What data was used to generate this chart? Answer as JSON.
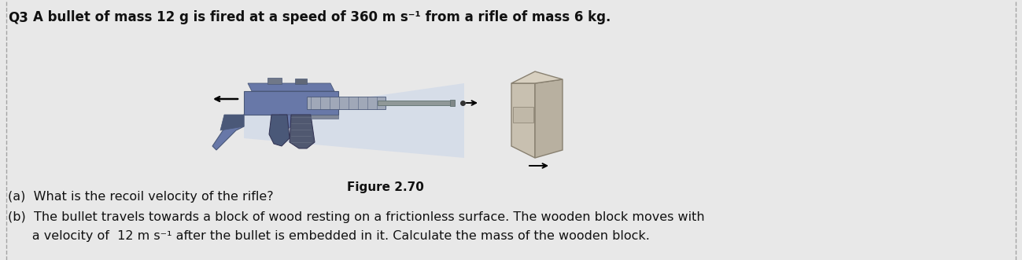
{
  "title_q": "Q3",
  "title_text": "A bullet of mass 12 g is fired at a speed of 360 m s⁻¹ from a rifle of mass 6 kg.",
  "figure_label": "Figure 2.70",
  "question_a": "(a)  What is the recoil velocity of the rifle?",
  "question_b": "(b)  The bullet travels towards a block of wood resting on a frictionless surface. The wooden block moves with",
  "question_b2": "      a velocity of  12 m s⁻¹ after the bullet is embedded in it. Calculate the mass of the wooden block.",
  "bg_color": "#e8e8e8",
  "text_color": "#111111",
  "fig_width": 12.99,
  "fig_height": 3.31,
  "dpi": 100,
  "rifle_blue": "#6878a8",
  "rifle_dark": "#4a5878",
  "rifle_barrel": "#909898",
  "cone_color": "#c8d4e8",
  "block_front": "#c8c0b0",
  "block_side": "#b8b0a0",
  "block_top": "#d8d0c0"
}
